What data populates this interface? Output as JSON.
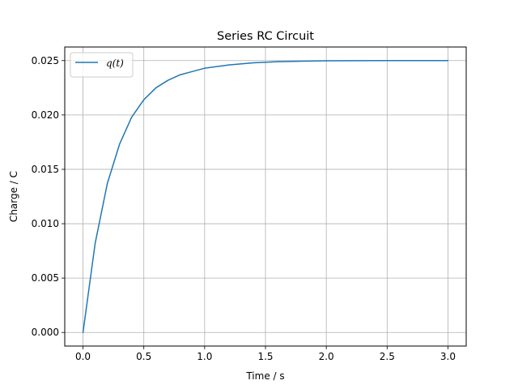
{
  "chart_data": {
    "type": "line",
    "title": "Series RC Circuit",
    "xlabel": "Time / s",
    "ylabel": "Charge / C",
    "xlim": [
      -0.15,
      3.15
    ],
    "ylim": [
      -0.00125,
      0.02625
    ],
    "xticks": [
      0.0,
      0.5,
      1.0,
      1.5,
      2.0,
      2.5,
      3.0
    ],
    "xtick_labels": [
      "0.0",
      "0.5",
      "1.0",
      "1.5",
      "2.0",
      "2.5",
      "3.0"
    ],
    "yticks": [
      0.0,
      0.005,
      0.01,
      0.015,
      0.02,
      0.025
    ],
    "ytick_labels": [
      "0.000",
      "0.005",
      "0.010",
      "0.015",
      "0.020",
      "0.025"
    ],
    "grid": true,
    "legend_position": "top-left",
    "series": [
      {
        "name": "q(t)",
        "color": "#1f77b4",
        "x": [
          0.0,
          0.1,
          0.2,
          0.3,
          0.4,
          0.5,
          0.6,
          0.7,
          0.8,
          0.9,
          1.0,
          1.2,
          1.4,
          1.6,
          1.8,
          2.0,
          2.25,
          2.5,
          2.75,
          3.0
        ],
        "y": [
          0.0,
          0.0082,
          0.0137,
          0.0173,
          0.0198,
          0.0214,
          0.0225,
          0.0232,
          0.0237,
          0.024,
          0.0243,
          0.0246,
          0.0248,
          0.0249,
          0.02495,
          0.02498,
          0.02499,
          0.025,
          0.025,
          0.025
        ]
      }
    ]
  }
}
